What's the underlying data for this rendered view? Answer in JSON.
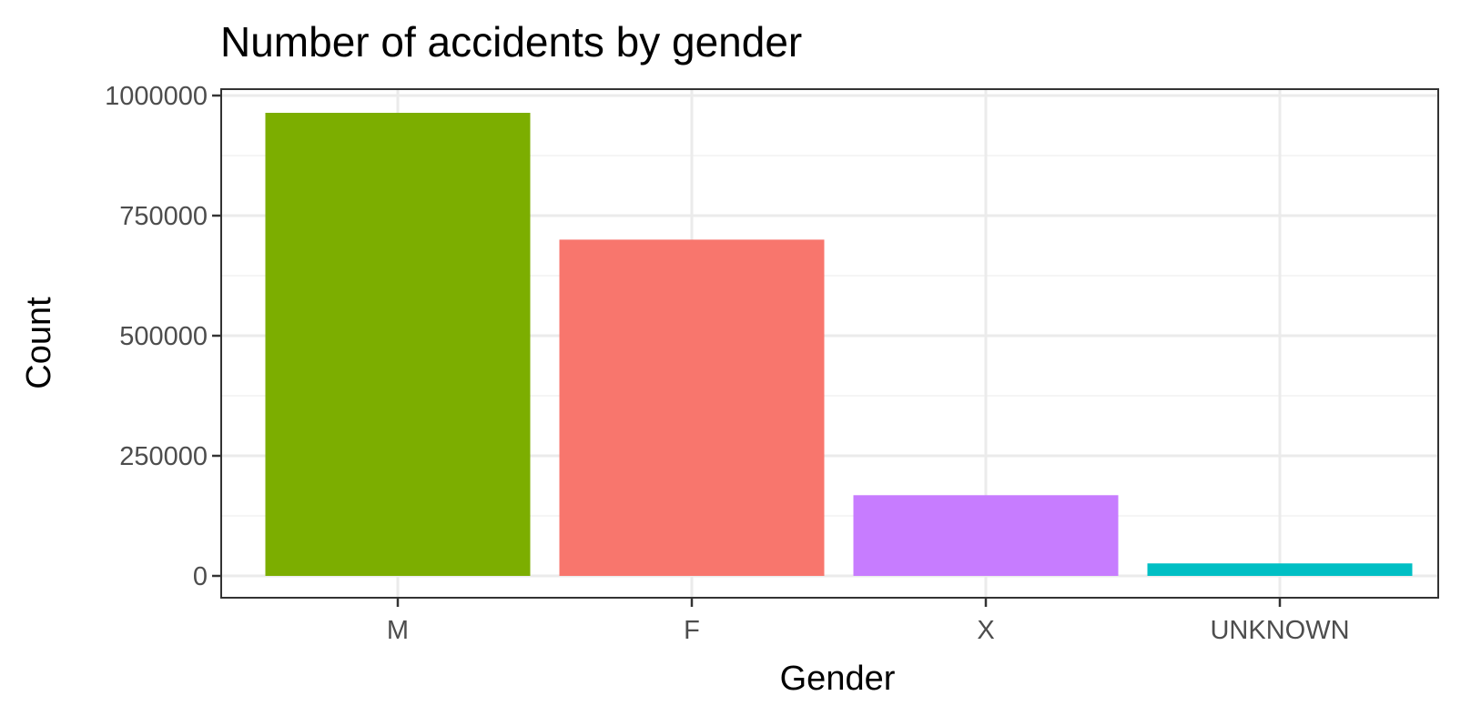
{
  "chart_data": {
    "type": "bar",
    "title": "Number of accidents by gender",
    "xlabel": "Gender",
    "ylabel": "Count",
    "categories": [
      "M",
      "F",
      "X",
      "UNKNOWN"
    ],
    "values": [
      964000,
      700000,
      168000,
      26000
    ],
    "colors": [
      "#7CAE00",
      "#F8766D",
      "#C77CFF",
      "#00BFC4"
    ],
    "ylim": [
      0,
      1000000
    ],
    "yticks": [
      0,
      250000,
      500000,
      750000,
      1000000
    ],
    "ytick_labels": [
      "0",
      "250000",
      "500000",
      "750000",
      "1000000"
    ],
    "grid": true,
    "legend": "none"
  }
}
